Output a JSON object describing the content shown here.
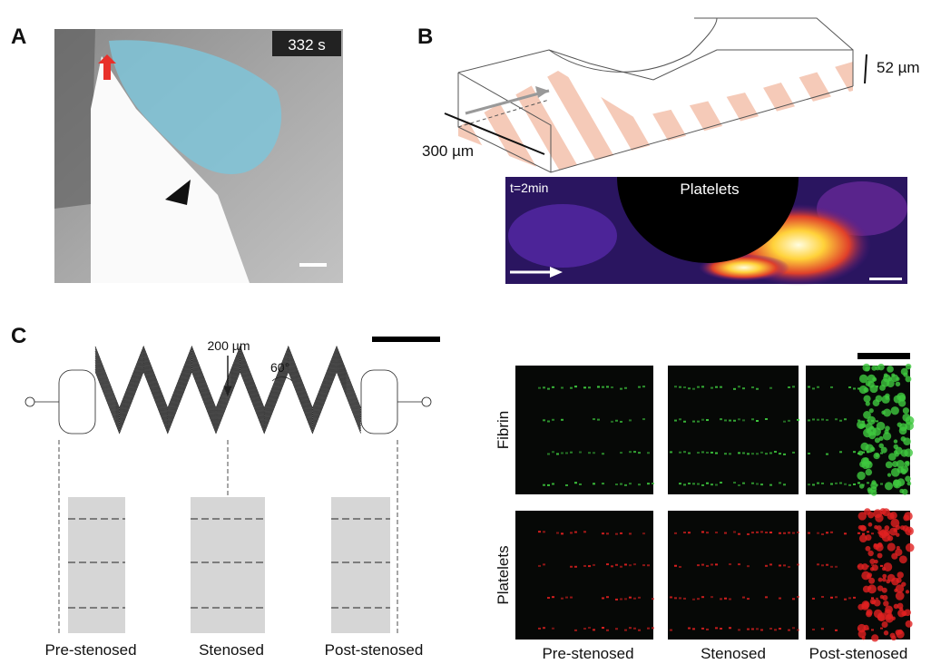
{
  "panels": {
    "a": {
      "label": "A",
      "timestamp": "332 s"
    },
    "b": {
      "label": "B",
      "height": "52 µm",
      "length": "300 µm",
      "time": "t=2min",
      "channel": "Platelets"
    },
    "c": {
      "label": "C",
      "width": "200 µm",
      "angle": "60°",
      "regions": [
        "Pre-stenosed",
        "Stenosed",
        "Post-stenosed"
      ],
      "rows": [
        "Fibrin",
        "Platelets"
      ],
      "columns": [
        "Pre-stenosed",
        "Stenosed",
        "Post-stenosed"
      ]
    }
  }
}
